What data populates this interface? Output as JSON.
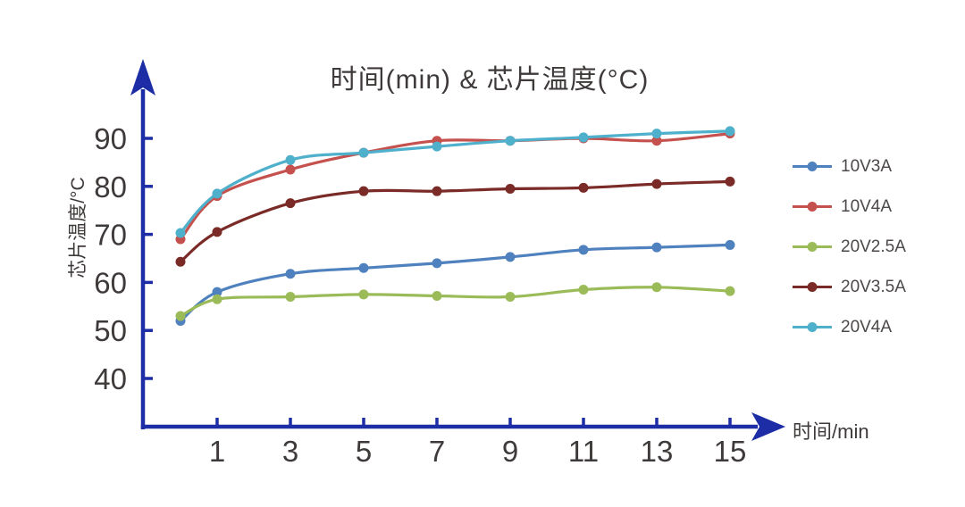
{
  "page": {
    "background": "#ffffff"
  },
  "chart_data": {
    "type": "line",
    "title": "时间(min) & 芯片温度(°C)",
    "xlabel": "时间/min",
    "ylabel": "芯片温度/°C",
    "x": [
      0,
      1,
      3,
      5,
      7,
      9,
      11,
      13,
      15
    ],
    "x_ticks": [
      1,
      3,
      5,
      7,
      9,
      11,
      13,
      15
    ],
    "y_ticks": [
      40,
      50,
      60,
      70,
      80,
      90
    ],
    "xlim": [
      0,
      16.5
    ],
    "ylim": [
      30,
      100
    ],
    "grid": false,
    "legend_position": "right",
    "marker": "circle",
    "series": [
      {
        "name": "10V3A",
        "color": "#4E81BD",
        "values": [
          52,
          58,
          61.8,
          63,
          64,
          65.3,
          66.8,
          67.3,
          67.8
        ]
      },
      {
        "name": "10V4A",
        "color": "#C5514E",
        "values": [
          69,
          78,
          83.5,
          87,
          89.5,
          89.5,
          90,
          89.5,
          91
        ]
      },
      {
        "name": "20V2.5A",
        "color": "#9BBB59",
        "values": [
          53,
          56.5,
          57,
          57.5,
          57.2,
          57,
          58.5,
          59,
          58.2
        ]
      },
      {
        "name": "20V3.5A",
        "color": "#7A2B27",
        "values": [
          64.3,
          70.5,
          76.5,
          79,
          79,
          79.5,
          79.7,
          80.5,
          81
        ]
      },
      {
        "name": "20V4A",
        "color": "#4FB0CC",
        "values": [
          70.3,
          78.5,
          85.5,
          87,
          88.3,
          89.5,
          90.2,
          91,
          91.5
        ]
      }
    ]
  },
  "colors": {
    "axis": "#1C2DA6",
    "title_text": "#3E3A39",
    "tick_text": "#3E3A39",
    "legend_text": "#4C4948"
  }
}
